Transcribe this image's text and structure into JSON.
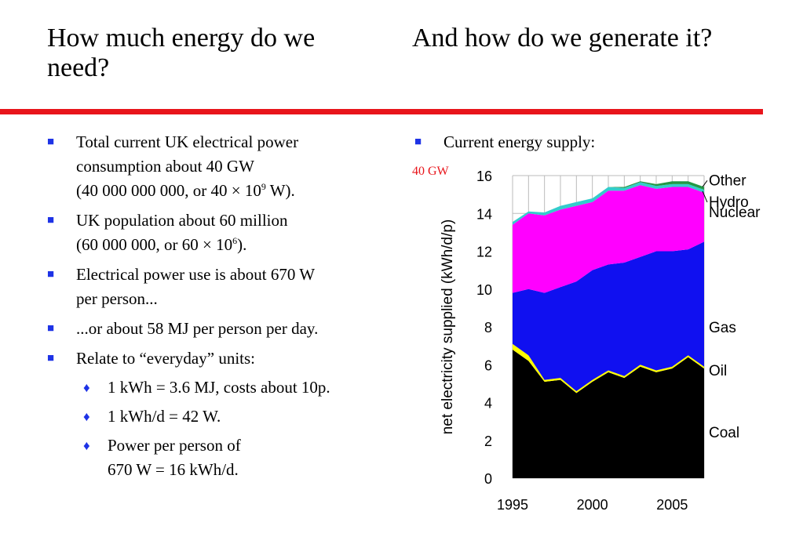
{
  "titles": {
    "left": "How much energy do we need?",
    "right": "And how do we generate it?"
  },
  "left_bullets": {
    "b1_line1": "Total current UK electrical power",
    "b1_line2": "consumption about 40 GW",
    "b1_line3_pre": "(40 000 000 000, or 40 × 10",
    "b1_line3_sup": "9",
    "b1_line3_post": " W).",
    "b2_line1": "UK population about  60 million",
    "b2_line2_pre": "(60 000 000, or 60 × 10",
    "b2_line2_sup": "6",
    "b2_line2_post": ").",
    "b3_line1": "Electrical power use is about 670 W",
    "b3_line2": "per person...",
    "b4": "...or about 58 MJ per person per day.",
    "b5": "Relate to “everyday” units:",
    "sub1": "1 kWh = 3.6 MJ, costs about 10p.",
    "sub2": "1 kWh/d = 42 W.",
    "sub3_line1": "Power per person of",
    "sub3_line2": "670 W = 16 kWh/d."
  },
  "right_bullet": "Current energy supply:",
  "annotation": "40 GW",
  "colors": {
    "title_rule": "#e8151b",
    "bullet": "#1e33e6",
    "annotation": "#e8151b"
  },
  "chart_data": {
    "type": "area",
    "ylabel": "net electricity supplied (kWh/d/p)",
    "xlabel": "",
    "ylim": [
      0,
      16
    ],
    "xlim": [
      1995,
      2007
    ],
    "yticks": [
      0,
      2,
      4,
      6,
      8,
      10,
      12,
      14,
      16
    ],
    "xticks": [
      1995,
      2000,
      2005
    ],
    "x": [
      1995,
      1996,
      1997,
      1998,
      1999,
      2000,
      2001,
      2002,
      2003,
      2004,
      2005,
      2006,
      2007
    ],
    "stacked": true,
    "grid": true,
    "legend": "right-side labels",
    "series": [
      {
        "name": "Coal",
        "color": "#000000",
        "values": [
          6.8,
          6.2,
          5.1,
          5.2,
          4.5,
          5.1,
          5.6,
          5.3,
          5.9,
          5.6,
          5.8,
          6.4,
          5.8
        ]
      },
      {
        "name": "Oil",
        "color": "#ffff00",
        "values": [
          0.3,
          0.3,
          0.1,
          0.1,
          0.1,
          0.1,
          0.1,
          0.1,
          0.1,
          0.1,
          0.1,
          0.1,
          0.1
        ]
      },
      {
        "name": "Gas",
        "color": "#1010f0",
        "values": [
          2.7,
          3.5,
          4.6,
          4.8,
          5.8,
          5.8,
          5.6,
          6.0,
          5.7,
          6.3,
          6.1,
          5.6,
          6.6
        ]
      },
      {
        "name": "Nuclear",
        "color": "#ff00ff",
        "values": [
          3.6,
          4.0,
          4.1,
          4.1,
          4.0,
          3.6,
          3.9,
          3.8,
          3.8,
          3.3,
          3.4,
          3.3,
          2.6
        ]
      },
      {
        "name": "Hydro",
        "color": "#33cccc",
        "values": [
          0.15,
          0.1,
          0.15,
          0.2,
          0.2,
          0.2,
          0.2,
          0.15,
          0.15,
          0.15,
          0.15,
          0.15,
          0.15
        ]
      },
      {
        "name": "Other",
        "color": "#229944",
        "values": [
          0.0,
          0.0,
          0.0,
          0.0,
          0.0,
          0.0,
          0.0,
          0.05,
          0.05,
          0.1,
          0.15,
          0.15,
          0.15
        ]
      }
    ]
  }
}
